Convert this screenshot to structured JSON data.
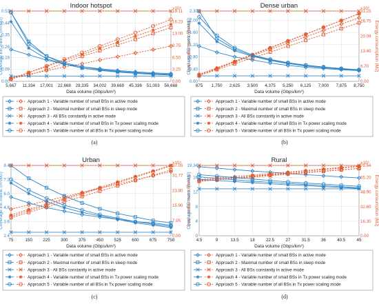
{
  "colors": {
    "blue": "#2f86c9",
    "orange": "#e2582b",
    "grid": "#dcdcdc",
    "frame": "#9a9a9a"
  },
  "chart_data": [
    {
      "type": "line",
      "panel_label": "(a)",
      "title": "Indoor hotspot",
      "xlabel": "Data volume (Gbps/km²)",
      "ylabel_left": "Coverage EE metric (m²/MJ)",
      "ylabel_right": "Energy consumption (MJ)",
      "right_exponent": "×10⁶",
      "x": [
        5667,
        11334,
        17001,
        22668,
        28335,
        34002,
        39669,
        45336,
        51003,
        56668
      ],
      "x_ticks": [
        "5,667",
        "11,334",
        "17,001",
        "22,668",
        "28,335",
        "34,002",
        "39,669",
        "45,336",
        "51,003",
        "56,668"
      ],
      "ylim_left": [
        0,
        0.53
      ],
      "yticks_left": [
        "0.00",
        "0.09",
        "0.18",
        "0.26",
        "0.35",
        "0.44",
        "0.53"
      ],
      "ylim_right": [
        0,
        19.11
      ],
      "yticks_right": [
        "0.00",
        "3.25",
        "6.50",
        "9.75",
        "13.00",
        "16.23",
        "19.11"
      ],
      "series": [
        {
          "name": "Approach 1 - Variable number of small BSs in active mode",
          "marker": "diamond",
          "ee": [
            0.24,
            0.2,
            0.16,
            0.13,
            0.11,
            0.095,
            0.082,
            0.072,
            0.064,
            0.058
          ],
          "energy": [
            1.0,
            1.9,
            2.9,
            3.9,
            4.8,
            5.8,
            6.7,
            7.7,
            8.6,
            9.6
          ]
        },
        {
          "name": "Approach 2 - Maximal number of small BSs in sleep mode",
          "marker": "square",
          "ee": [
            0.52,
            0.3,
            0.19,
            0.13,
            0.1,
            0.085,
            0.072,
            0.062,
            0.055,
            0.05
          ],
          "energy": [
            0.7,
            1.7,
            3.2,
            5.0,
            6.8,
            8.3,
            9.9,
            11.4,
            13.0,
            14.6
          ]
        },
        {
          "name": "Approach 3 - All BSs constantly in active mode",
          "marker": "x",
          "ee": [
            0.04,
            0.04,
            0.04,
            0.04,
            0.04,
            0.04,
            0.04,
            0.04,
            0.04,
            0.04
          ],
          "energy": [
            19.11,
            19.11,
            19.11,
            19.11,
            19.11,
            19.11,
            19.11,
            19.11,
            19.11,
            19.11
          ]
        },
        {
          "name": "Approach 4 - Variable number of small BSs in Tx power scaling mode",
          "marker": "star",
          "ee": [
            0.45,
            0.25,
            0.17,
            0.13,
            0.1,
            0.082,
            0.07,
            0.06,
            0.053,
            0.047
          ],
          "energy": [
            0.8,
            2.4,
            4.0,
            5.7,
            7.3,
            9.0,
            10.6,
            12.3,
            13.9,
            15.5
          ]
        },
        {
          "name": "Approach 5 - Variable number of all BSs in Tx power scaling mode",
          "marker": "circle",
          "ee": [
            0.52,
            0.28,
            0.19,
            0.14,
            0.11,
            0.09,
            0.076,
            0.066,
            0.058,
            0.052
          ],
          "energy": [
            0.6,
            2.4,
            4.2,
            6.0,
            7.8,
            9.6,
            11.4,
            13.2,
            15.0,
            16.8
          ]
        }
      ]
    },
    {
      "type": "line",
      "panel_label": "(b)",
      "title": "Dense urban",
      "xlabel": "Data volume (Gbps/km²)",
      "ylabel_left": "Coverage EE metric (m²/MJ)",
      "ylabel_right": "Energy consumption (MJ)",
      "right_exponent": "×10⁶",
      "x": [
        875,
        1750,
        2625,
        3500,
        4375,
        5250,
        6125,
        7000,
        7875,
        8750
      ],
      "x_ticks": [
        "875",
        "1,750",
        "2,625",
        "3,500",
        "4,375",
        "5,250",
        "6,125",
        "7,000",
        "7,875",
        "8,750"
      ],
      "ylim_left": [
        0,
        2.3
      ],
      "yticks_left": [
        "0.00",
        "0.40",
        "0.80",
        "1.20",
        "1.60",
        "2.00",
        "2.30"
      ],
      "ylim_right": [
        0,
        31.23
      ],
      "yticks_right": [
        "0.00",
        "6.70",
        "13.40",
        "20.09",
        "26.75",
        "31.23"
      ],
      "series": [
        {
          "name": "Approach 1 - Variable number of small BSs in active mode",
          "marker": "diamond",
          "ee": [
            1.15,
            0.95,
            0.8,
            0.7,
            0.6,
            0.52,
            0.46,
            0.42,
            0.38,
            0.35
          ],
          "energy": [
            3.2,
            5.8,
            8.6,
            11.4,
            14.2,
            17.0,
            19.8,
            22.6,
            25.4,
            28.2
          ]
        },
        {
          "name": "Approach 2 - Maximal number of small BSs in sleep mode",
          "marker": "square",
          "ee": [
            2.3,
            1.4,
            1.05,
            0.84,
            0.7,
            0.6,
            0.52,
            0.46,
            0.41,
            0.37
          ],
          "energy": [
            2.6,
            5.2,
            7.8,
            10.4,
            13.0,
            15.6,
            18.2,
            20.8,
            23.4,
            26.0
          ]
        },
        {
          "name": "Approach 3 - All BSs constantly in active mode",
          "marker": "x",
          "ee": [
            0.18,
            0.18,
            0.18,
            0.18,
            0.18,
            0.18,
            0.18,
            0.18,
            0.18,
            0.18
          ],
          "energy": [
            31.23,
            31.23,
            31.23,
            31.23,
            31.23,
            31.23,
            31.23,
            31.23,
            31.23,
            31.23
          ]
        },
        {
          "name": "Approach 4 - Variable number of small BSs in Tx power scaling mode",
          "marker": "star",
          "ee": [
            1.9,
            1.3,
            1.0,
            0.82,
            0.68,
            0.58,
            0.5,
            0.45,
            0.4,
            0.36
          ],
          "energy": [
            2.9,
            6.0,
            9.0,
            12.0,
            15.0,
            18.0,
            21.0,
            24.0,
            27.0,
            30.0
          ]
        },
        {
          "name": "Approach 5 - Variable number of all BSs in Tx power scaling mode",
          "marker": "circle",
          "ee": [
            2.1,
            1.5,
            1.1,
            0.86,
            0.72,
            0.61,
            0.53,
            0.47,
            0.42,
            0.38
          ],
          "energy": [
            2.5,
            5.6,
            8.6,
            11.7,
            14.8,
            17.9,
            20.9,
            24.0,
            27.0,
            30.1
          ]
        }
      ]
    },
    {
      "type": "line",
      "panel_label": "(c)",
      "title": "Urban",
      "xlabel": "Data volume (Gbps/km²)",
      "ylabel_left": "Coverage EE metric (m²/MJ)",
      "ylabel_right": "Energy consumption (MJ)",
      "right_exponent": "×10⁴",
      "x": [
        75,
        150,
        225,
        300,
        375,
        450,
        525,
        600,
        675,
        750
      ],
      "x_ticks": [
        "75",
        "150",
        "225",
        "300",
        "375",
        "450",
        "525",
        "600",
        "675",
        "750"
      ],
      "ylim_left": [
        2.4,
        8.4
      ],
      "yticks_left": [
        "2.4",
        "3.6",
        "4.8",
        "6.0",
        "7.2",
        "8.4"
      ],
      "ylim_right": [
        0,
        37.05
      ],
      "yticks_right": [
        "0.00",
        "7.95",
        "15.90",
        "23.80",
        "31.77",
        "37.05"
      ],
      "series": [
        {
          "name": "Approach 1 - Variable number of small BSs in active mode",
          "marker": "diamond",
          "ee": [
            5.7,
            5.2,
            4.8,
            4.5,
            4.2,
            4.0,
            3.8,
            3.6,
            3.5,
            3.3
          ],
          "energy": [
            14.0,
            16.2,
            18.4,
            20.6,
            22.8,
            25.0,
            27.2,
            29.4,
            31.6,
            33.8
          ]
        },
        {
          "name": "Approach 2 - Maximal number of small BSs in sleep mode",
          "marker": "square",
          "ee": [
            8.4,
            7.3,
            6.5,
            5.8,
            5.2,
            4.7,
            4.3,
            4.0,
            3.7,
            3.5
          ],
          "energy": [
            9.5,
            12.3,
            15.1,
            17.9,
            20.7,
            23.5,
            26.3,
            29.1,
            31.9,
            34.7
          ]
        },
        {
          "name": "Approach 3 - All BSs constantly in active mode",
          "marker": "x",
          "ee": [
            2.7,
            2.7,
            2.7,
            2.7,
            2.7,
            2.7,
            2.7,
            2.7,
            2.7,
            2.7
          ],
          "energy": [
            37.05,
            37.05,
            37.05,
            37.05,
            37.05,
            37.05,
            37.05,
            37.05,
            37.05,
            37.05
          ]
        },
        {
          "name": "Approach 4 - Variable number of small BSs in Tx power scaling mode",
          "marker": "star",
          "ee": [
            6.9,
            6.0,
            5.3,
            4.8,
            4.4,
            4.1,
            3.8,
            3.5,
            3.3,
            3.1
          ],
          "energy": [
            11.0,
            13.9,
            16.8,
            19.7,
            22.6,
            25.5,
            28.4,
            31.3,
            34.2,
            37.0
          ]
        },
        {
          "name": "Approach 5 - Variable number of all BSs in Tx power scaling mode",
          "marker": "circle",
          "ee": [
            7.2,
            6.3,
            5.6,
            5.0,
            4.6,
            4.2,
            3.9,
            3.6,
            3.4,
            3.2
          ],
          "energy": [
            10.2,
            13.2,
            16.1,
            19.1,
            22.0,
            25.0,
            27.9,
            30.9,
            33.8,
            36.8
          ]
        }
      ]
    },
    {
      "type": "line",
      "panel_label": "(d)",
      "title": "Rural",
      "xlabel": "Data volume (Gbps/km²)",
      "ylabel_left": "Coverage EE metric (m²/MJ)",
      "ylabel_right": "Energy consumption (MJ)",
      "right_exponent": "×10³",
      "x": [
        4.5,
        9,
        13.5,
        18,
        22.5,
        27,
        31.5,
        36,
        40.5,
        45
      ],
      "x_ticks": [
        "4.5",
        "9",
        "13.5",
        "18",
        "22.5",
        "27",
        "31.5",
        "36",
        "40.5",
        "45"
      ],
      "ylim_left": [
        0,
        19.34
      ],
      "yticks_left": [
        "0",
        "4",
        "8",
        "12",
        "16",
        "19.34"
      ],
      "ylim_right": [
        0,
        78.84
      ],
      "yticks_right": [
        "0.00",
        "16.30",
        "32.60",
        "48.90",
        "65.20",
        "78.84"
      ],
      "series": [
        {
          "name": "Approach 1 - Variable number of small BSs in active mode",
          "marker": "diamond",
          "ee": [
            19.0,
            18.6,
            18.2,
            17.8,
            17.5,
            17.1,
            16.8,
            16.5,
            16.2,
            15.9
          ],
          "energy": [
            62.0,
            63.5,
            65.0,
            66.5,
            68.0,
            69.5,
            71.0,
            72.5,
            74.0,
            75.5
          ]
        },
        {
          "name": "Approach 2 - Maximal number of small BSs in sleep mode",
          "marker": "square",
          "ee": [
            16.2,
            15.8,
            15.4,
            15.0,
            14.7,
            14.4,
            14.1,
            13.8,
            13.5,
            13.2
          ],
          "energy": [
            61.0,
            62.6,
            64.2,
            65.8,
            67.4,
            69.0,
            70.6,
            72.2,
            73.8,
            75.4
          ]
        },
        {
          "name": "Approach 3 - All BSs constantly in active mode",
          "marker": "x",
          "ee": [
            12.9,
            12.9,
            12.9,
            12.9,
            12.9,
            12.9,
            12.9,
            12.9,
            12.9,
            12.9
          ],
          "energy": [
            78.84,
            78.84,
            78.84,
            78.84,
            78.84,
            78.84,
            78.84,
            78.84,
            78.84,
            78.84
          ]
        },
        {
          "name": "Approach 4 - Variable number of small BSs in Tx power scaling mode",
          "marker": "star",
          "ee": [
            15.5,
            15.2,
            14.9,
            14.6,
            14.3,
            14.0,
            13.8,
            13.5,
            13.3,
            13.0
          ],
          "energy": [
            63.0,
            64.7,
            66.4,
            68.1,
            69.8,
            71.5,
            73.2,
            74.9,
            76.6,
            78.3
          ]
        },
        {
          "name": "Approach 5 - Variable number of all BSs in Tx power scaling mode",
          "marker": "circle",
          "ee": [
            16.8,
            16.4,
            16.0,
            15.6,
            15.2,
            14.8,
            14.5,
            14.2,
            13.9,
            13.6
          ],
          "energy": [
            61.5,
            63.3,
            65.1,
            66.9,
            68.7,
            70.5,
            72.3,
            74.1,
            75.9,
            77.7
          ]
        }
      ]
    }
  ]
}
